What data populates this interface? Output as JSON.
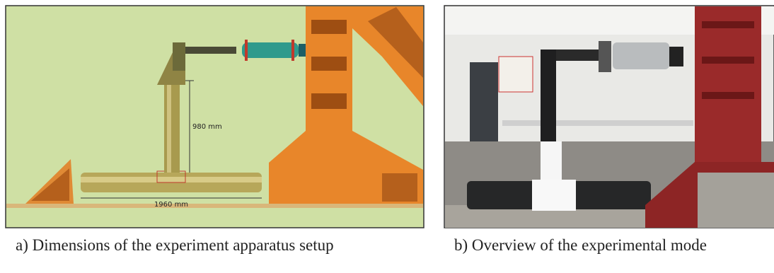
{
  "panels": [
    {
      "annotations": [
        "980 mm",
        "1960 mm"
      ],
      "caption": "a) Dimensions of the experiment apparatus setup"
    },
    {
      "caption": "b) Overview of the experimental mode"
    }
  ]
}
